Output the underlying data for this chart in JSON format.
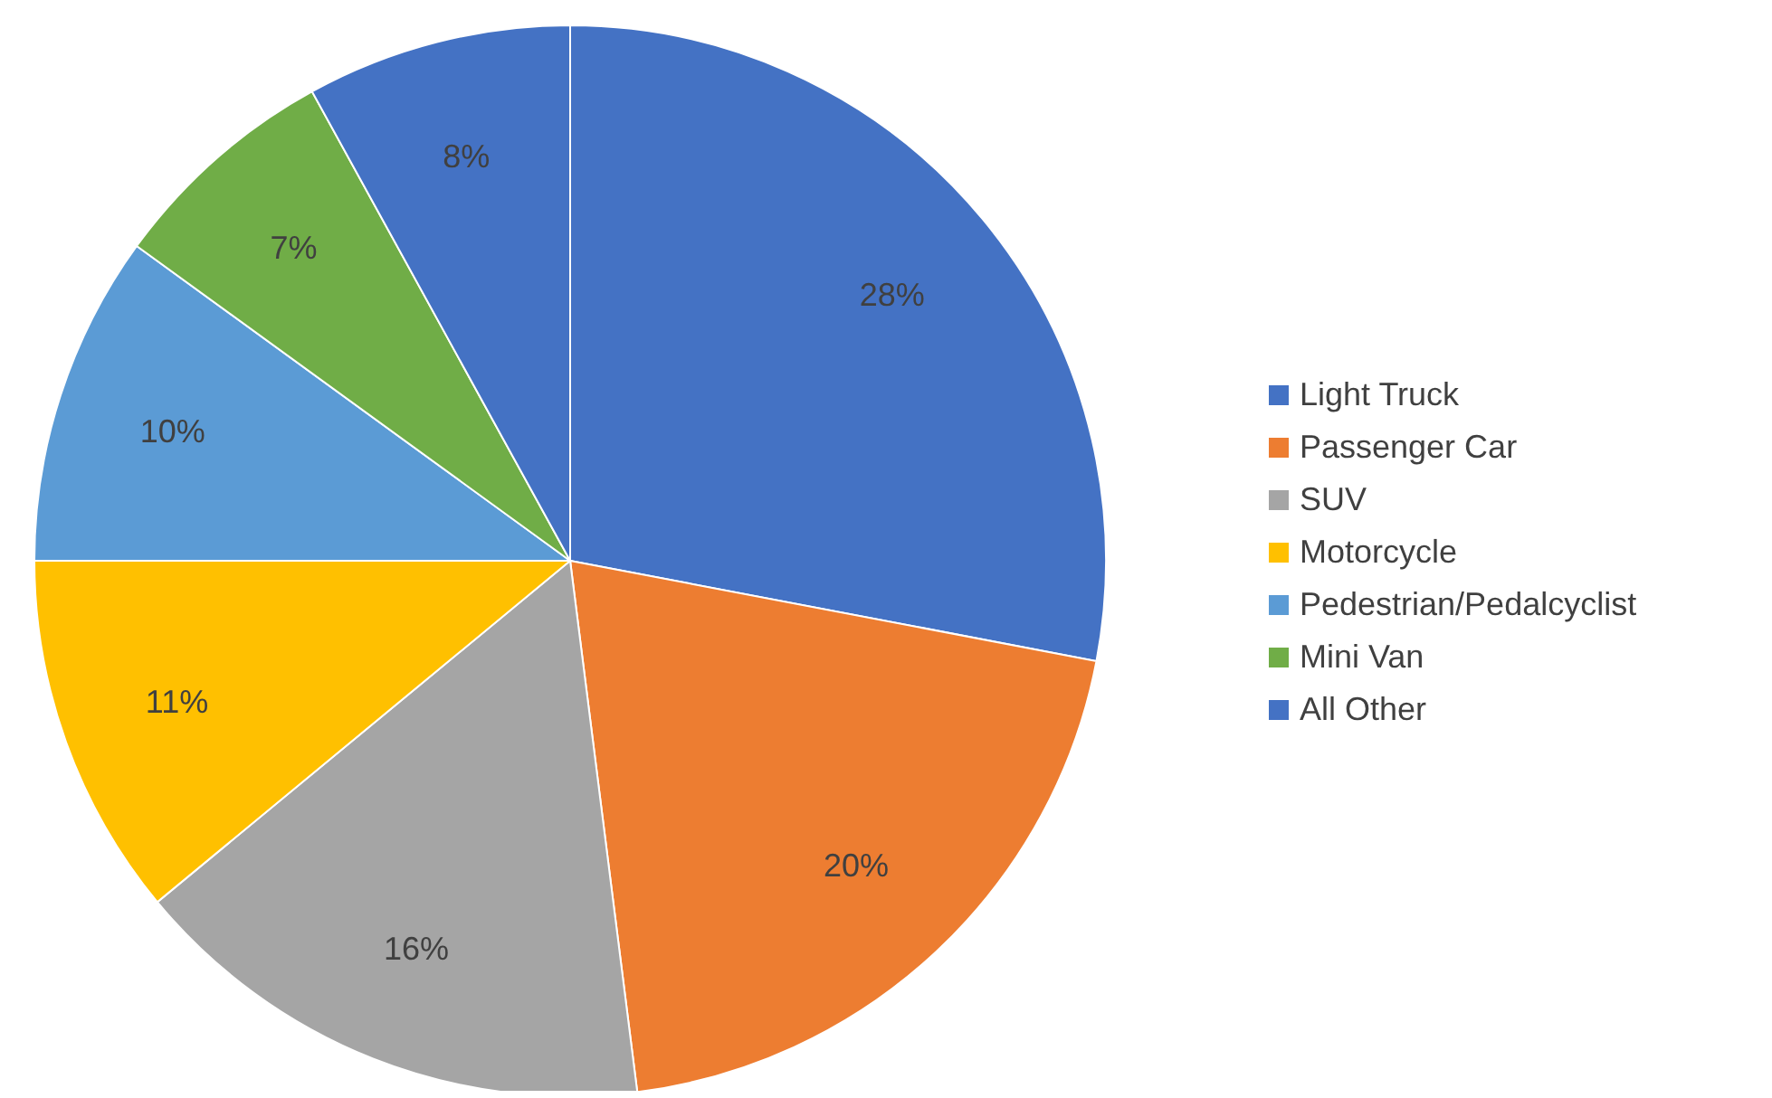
{
  "chart_data": {
    "type": "pie",
    "categories": [
      "Light Truck",
      "Passenger Car",
      "SUV",
      "Motorcycle",
      "Pedestrian/Pedalcyclist",
      "Mini Van",
      "All Other"
    ],
    "values": [
      28,
      20,
      16,
      11,
      10,
      7,
      8
    ],
    "value_labels": [
      "28%",
      "20%",
      "16%",
      "11%",
      "10%",
      "7%",
      "8%"
    ],
    "colors": [
      "#4472c4",
      "#ed7d31",
      "#a5a5a5",
      "#ffc000",
      "#5b9bd5",
      "#70ad47",
      "#4472c4"
    ],
    "legend": "right"
  }
}
